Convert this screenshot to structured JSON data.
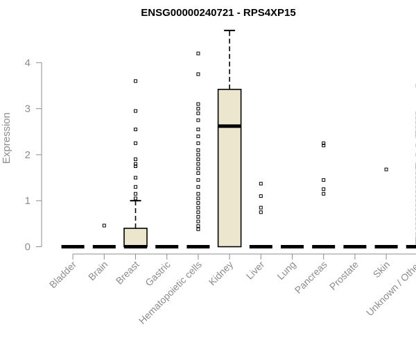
{
  "chart_data": {
    "type": "boxplot",
    "title": "ENSG00000240721 - RPS4XP15",
    "xlabel": "",
    "ylabel": "Expression",
    "ylim": [
      0,
      4.7
    ],
    "yticks": [
      0,
      1,
      2,
      3,
      4
    ],
    "box_fill": "#ede6ce",
    "categories": [
      "Bladder",
      "Brain",
      "Breast",
      "Gastric",
      "Hematopoietic cells",
      "Kidney",
      "Liver",
      "Lung",
      "Pancreas",
      "Prostate",
      "Skin",
      "Unknown / Other"
    ],
    "boxes": [
      {
        "category": "Bladder",
        "q1": 0,
        "median": 0,
        "q3": 0,
        "whisker_low": 0,
        "whisker_high": 0,
        "outliers": []
      },
      {
        "category": "Brain",
        "q1": 0,
        "median": 0,
        "q3": 0,
        "whisker_low": 0,
        "whisker_high": 0,
        "outliers": [
          0.46
        ]
      },
      {
        "category": "Breast",
        "q1": 0,
        "median": 0,
        "q3": 0.4,
        "whisker_low": 0,
        "whisker_high": 1.0,
        "outliers": [
          1.05,
          1.15,
          1.3,
          1.5,
          1.75,
          1.8,
          1.9,
          2.25,
          2.55,
          2.95,
          3.6
        ]
      },
      {
        "category": "Gastric",
        "q1": 0,
        "median": 0,
        "q3": 0,
        "whisker_low": 0,
        "whisker_high": 0,
        "outliers": []
      },
      {
        "category": "Hematopoietic cells",
        "q1": 0,
        "median": 0,
        "q3": 0,
        "whisker_low": 0,
        "whisker_high": 0,
        "outliers": [
          0.38,
          0.45,
          0.55,
          0.65,
          0.75,
          0.85,
          0.95,
          1.05,
          1.15,
          1.3,
          1.45,
          1.6,
          1.7,
          1.8,
          1.9,
          2.0,
          2.1,
          2.25,
          2.4,
          2.55,
          2.75,
          2.9,
          3.0,
          3.1,
          3.75,
          4.2
        ]
      },
      {
        "category": "Kidney",
        "q1": 0,
        "median": 2.62,
        "q3": 3.42,
        "whisker_low": 0,
        "whisker_high": 4.7,
        "outliers": []
      },
      {
        "category": "Liver",
        "q1": 0,
        "median": 0,
        "q3": 0,
        "whisker_low": 0,
        "whisker_high": 0,
        "outliers": [
          0.75,
          0.85,
          1.1,
          1.37
        ]
      },
      {
        "category": "Lung",
        "q1": 0,
        "median": 0,
        "q3": 0,
        "whisker_low": 0,
        "whisker_high": 0,
        "outliers": []
      },
      {
        "category": "Pancreas",
        "q1": 0,
        "median": 0,
        "q3": 0,
        "whisker_low": 0,
        "whisker_high": 0,
        "outliers": [
          1.15,
          1.25,
          1.45,
          2.2,
          2.25
        ]
      },
      {
        "category": "Prostate",
        "q1": 0,
        "median": 0,
        "q3": 0,
        "whisker_low": 0,
        "whisker_high": 0,
        "outliers": []
      },
      {
        "category": "Skin",
        "q1": 0,
        "median": 0,
        "q3": 0,
        "whisker_low": 0,
        "whisker_high": 0,
        "outliers": [
          1.68
        ]
      },
      {
        "category": "Unknown / Other",
        "q1": 0,
        "median": 0,
        "q3": 0,
        "whisker_low": 0,
        "whisker_high": 0,
        "outliers": [
          0.05,
          0.1,
          0.15,
          0.2,
          0.28,
          0.4,
          0.5,
          0.6,
          0.7,
          0.8,
          0.9,
          1.0,
          1.1,
          1.2,
          1.3,
          1.4,
          1.5,
          1.6,
          1.7,
          1.75,
          1.8,
          2.0,
          2.2,
          2.4,
          2.45,
          2.5,
          2.6,
          2.7,
          2.8,
          2.9,
          3.5
        ]
      }
    ]
  }
}
